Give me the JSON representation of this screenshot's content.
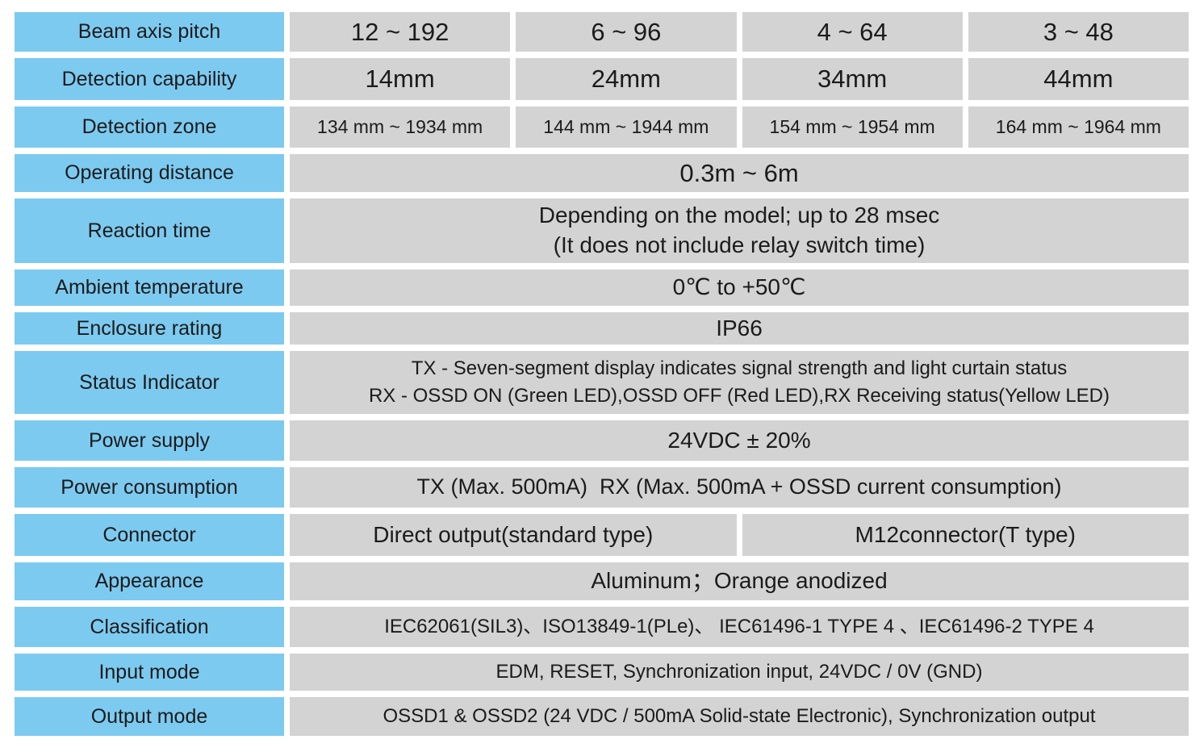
{
  "table": {
    "colors": {
      "label_bg": "#7DCAF0",
      "value_bg": "#D3D3D4",
      "text": "#1B1B1B",
      "page_bg": "#FFFFFF"
    },
    "rows": [
      {
        "label": "Beam axis pitch",
        "values": [
          "12 ~ 192",
          "6 ~ 96",
          "4 ~ 64",
          "3 ~ 48"
        ]
      },
      {
        "label": "Detection capability",
        "values": [
          "14mm",
          "24mm",
          "34mm",
          "44mm"
        ]
      },
      {
        "label": "Detection zone",
        "values": [
          "134 mm ~ 1934 mm",
          "144 mm ~ 1944 mm",
          "154 mm ~ 1954 mm",
          "164 mm ~ 1964 mm"
        ]
      },
      {
        "label": "Operating distance",
        "value": "0.3m ~ 6m"
      },
      {
        "label": "Reaction time",
        "lines": [
          "Depending on the model; up to 28 msec",
          "(It does not include relay switch time)"
        ]
      },
      {
        "label": "Ambient temperature",
        "value": "0℃ to +50℃"
      },
      {
        "label": "Enclosure rating",
        "value": "IP66"
      },
      {
        "label": "Status Indicator",
        "lines": [
          "TX - Seven-segment display indicates signal strength and light curtain status",
          "RX - OSSD ON (Green LED),OSSD OFF (Red LED),RX Receiving status(Yellow LED)"
        ]
      },
      {
        "label": "Power supply",
        "value": "24VDC ± 20%"
      },
      {
        "label": "Power consumption",
        "value": "TX (Max. 500mA)  RX (Max. 500mA + OSSD current consumption)"
      },
      {
        "label": "Connector",
        "values": [
          "Direct output(standard type)",
          "M12connector(T type)"
        ]
      },
      {
        "label": "Appearance",
        "value": "Aluminum；Orange anodized"
      },
      {
        "label": "Classification",
        "value": "IEC62061(SIL3)、ISO13849-1(PLe)、 IEC61496-1 TYPE 4 、IEC61496-2 TYPE 4"
      },
      {
        "label": "Input mode",
        "value": "EDM, RESET, Synchronization input, 24VDC / 0V (GND)"
      },
      {
        "label": "Output mode",
        "value": "OSSD1 & OSSD2 (24 VDC / 500mA Solid-state Electronic), Synchronization output"
      }
    ]
  }
}
